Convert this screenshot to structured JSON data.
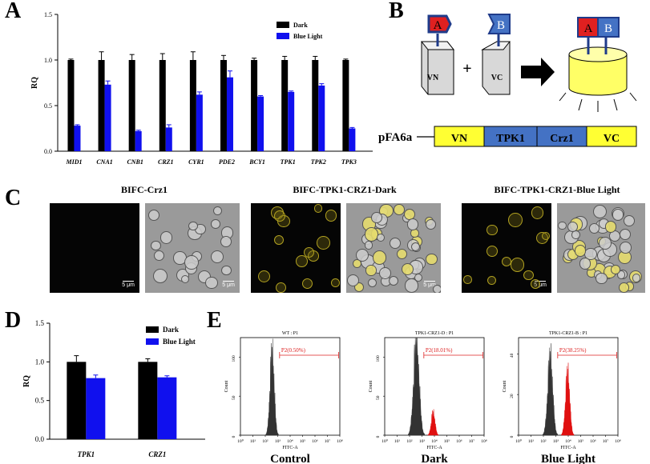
{
  "panel_letters": {
    "a": "A",
    "b": "B",
    "c": "C",
    "d": "D",
    "e": "E"
  },
  "chart_data": [
    {
      "id": "A",
      "type": "bar",
      "categories": [
        "MID1",
        "CNA1",
        "CNB1",
        "CRZ1",
        "CYR1",
        "PDE2",
        "BCY1",
        "TPK1",
        "TPK2",
        "TPK3"
      ],
      "series": [
        {
          "name": "Dark",
          "values": [
            1.0,
            1.0,
            1.0,
            1.0,
            1.0,
            1.0,
            1.0,
            1.0,
            1.0,
            1.0
          ],
          "errors": [
            0.01,
            0.09,
            0.06,
            0.07,
            0.09,
            0.05,
            0.02,
            0.04,
            0.04,
            0.01
          ],
          "color": "#000000"
        },
        {
          "name": "Blue Light",
          "values": [
            0.28,
            0.73,
            0.22,
            0.26,
            0.62,
            0.81,
            0.6,
            0.65,
            0.72,
            0.25
          ],
          "errors": [
            0.01,
            0.04,
            0.01,
            0.03,
            0.03,
            0.07,
            0.01,
            0.01,
            0.02,
            0.01
          ],
          "color": "#1010ee"
        }
      ],
      "ylabel": "RQ",
      "ylim": [
        0,
        1.5
      ],
      "yticks": [
        "0.0",
        "0.5",
        "1.0",
        "1.5"
      ],
      "legend": "top-right"
    },
    {
      "id": "D",
      "type": "bar",
      "categories": [
        "TPK1",
        "CRZ1"
      ],
      "series": [
        {
          "name": "Dark",
          "values": [
            1.0,
            1.0
          ],
          "errors": [
            0.08,
            0.04
          ],
          "color": "#000000"
        },
        {
          "name": "Blue Light",
          "values": [
            0.79,
            0.8
          ],
          "errors": [
            0.04,
            0.02
          ],
          "color": "#1010ee"
        }
      ],
      "ylabel": "RQ",
      "ylim": [
        0,
        1.5
      ],
      "yticks": [
        "0.0",
        "0.5",
        "1.0",
        "1.5"
      ],
      "legend": "top-right"
    },
    {
      "id": "E",
      "type": "histogram",
      "panels": [
        {
          "title": "WT : P1",
          "gate": "P2(0.50%)",
          "caption": "Control",
          "ymax": 125,
          "yticks": [
            "0",
            "50",
            "100"
          ],
          "ytick_values": [
            0,
            50,
            100
          ],
          "gray": {
            "center": 2.55,
            "width": 0.17,
            "peak": 104
          },
          "red": null
        },
        {
          "title": "TPK1-CRZ1-D : P1",
          "gate": "P2(18.01%)",
          "caption": "Dark",
          "ymax": 125,
          "yticks": [
            "0",
            "50",
            "100"
          ],
          "ytick_values": [
            0,
            50,
            100
          ],
          "gray": {
            "center": 2.55,
            "width": 0.22,
            "peak": 120
          },
          "red": {
            "center": 3.9,
            "width": 0.15,
            "peak": 28
          }
        },
        {
          "title": "TPK1-CRZ1-B : P1",
          "gate": "P2(38.25%)",
          "caption": "Blue Light",
          "ymax": 48,
          "yticks": [
            "0",
            "20",
            "40"
          ],
          "ytick_values": [
            0,
            20,
            40
          ],
          "gray": {
            "center": 2.55,
            "width": 0.2,
            "peak": 38
          },
          "red": {
            "center": 3.95,
            "width": 0.17,
            "peak": 30
          }
        }
      ],
      "xlabel": "FITC-A",
      "ylabel": "Count",
      "xticks": [
        "10⁰",
        "10¹",
        "10²",
        "10³",
        "10⁴",
        "10⁵",
        "10⁶",
        "10⁷",
        "10⁸"
      ]
    }
  ],
  "panel_b": {
    "vn_label": "VN",
    "vc_label": "VC",
    "a_label": "A",
    "b_label": "B",
    "plus": "+",
    "plasmid_name": "pFA6a",
    "plasmid_segments": [
      "VN",
      "TPK1",
      "Crz1",
      "VC"
    ],
    "colors": {
      "yellow": "#ffff33",
      "blue": "#4472c4",
      "red": "#e02020"
    }
  },
  "panel_c": {
    "titles": [
      "BIFC-Crz1",
      "BIFC-TPK1-CRZ1-Dark",
      "BIFC-TPK1-CRZ1-Blue Light"
    ],
    "scale": "5 μm"
  }
}
